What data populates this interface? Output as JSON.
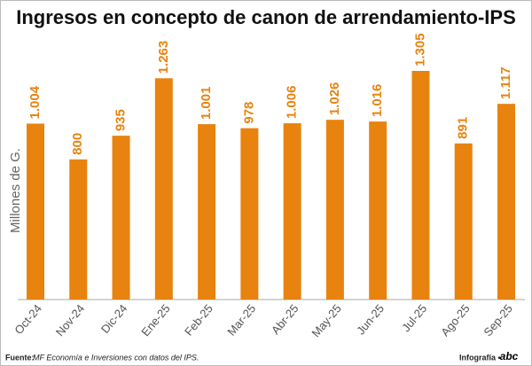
{
  "chart_data": {
    "type": "bar",
    "title": "Ingresos en concepto de canon de arrendamiento-IPS",
    "ylabel": "Millones de G.",
    "categories": [
      "Oct-24",
      "Nov-24",
      "Dic-24",
      "Ene-25",
      "Feb-25",
      "Mar-25",
      "Abr-25",
      "May-25",
      "Jun-25",
      "Jul-25",
      "Ago-25",
      "Sep-25"
    ],
    "values": [
      1004,
      800,
      935,
      1263,
      1001,
      978,
      1006,
      1026,
      1016,
      1305,
      891,
      1117
    ],
    "value_labels": [
      "1.004",
      "800",
      "935",
      "1.263",
      "1.001",
      "978",
      "1.006",
      "1.026",
      "1.016",
      "1.305",
      "891",
      "1.117"
    ],
    "color": "#e8830f",
    "source_label": "Fuente:",
    "source": "MF Economía e Inversiones con datos del IPS.",
    "credit": "Infografía •",
    "brand": "abc"
  }
}
